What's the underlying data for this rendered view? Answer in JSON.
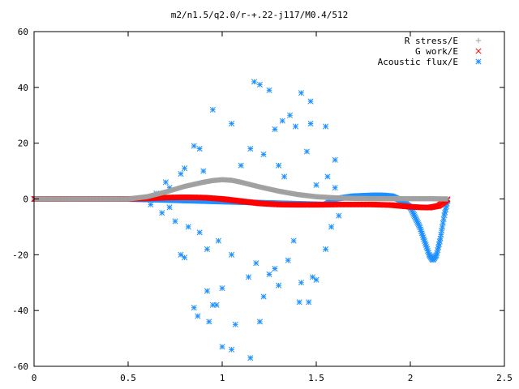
{
  "chart_data": {
    "type": "scatter",
    "title": "m2/n1.5/q2.0/r-+.22-j117/M0.4/512",
    "xlabel": "",
    "ylabel": "",
    "xlim": [
      0,
      2.5
    ],
    "ylim": [
      -60,
      60
    ],
    "xticks": [
      0,
      0.5,
      1,
      1.5,
      2,
      2.5
    ],
    "yticks": [
      -60,
      -40,
      -20,
      0,
      20,
      40,
      60
    ],
    "xtick_labels": [
      "0",
      "0.5",
      "1",
      "1.5",
      "2",
      "2.5"
    ],
    "ytick_labels": [
      "-60",
      "-40",
      "-20",
      "0",
      "20",
      "40",
      "60"
    ],
    "grid": false,
    "legend_position": "top-right",
    "series": [
      {
        "name": "R stress/E",
        "marker": "plus",
        "color": "#a0a0a0",
        "x": [
          0.0,
          0.5,
          0.6,
          0.7,
          0.8,
          0.9,
          0.95,
          1.0,
          1.05,
          1.1,
          1.2,
          1.3,
          1.4,
          1.5,
          1.6,
          1.7,
          1.8,
          1.9,
          2.0,
          2.1,
          2.2
        ],
        "y": [
          0.0,
          0.0,
          0.8,
          2.5,
          4.5,
          6.0,
          6.6,
          6.9,
          6.7,
          6.0,
          4.3,
          2.8,
          1.6,
          0.8,
          0.4,
          0.2,
          0.1,
          0.1,
          0.1,
          0.1,
          0.0
        ]
      },
      {
        "name": "G work/E",
        "marker": "cross",
        "color": "#ff0000",
        "x": [
          0.0,
          0.5,
          0.6,
          0.7,
          0.8,
          0.9,
          1.0,
          1.1,
          1.2,
          1.3,
          1.4,
          1.5,
          1.6,
          1.7,
          1.8,
          1.9,
          2.0,
          2.05,
          2.1,
          2.15,
          2.2
        ],
        "y": [
          0.0,
          0.0,
          0.2,
          0.5,
          0.6,
          0.5,
          0.0,
          -0.8,
          -1.6,
          -2.0,
          -2.1,
          -2.1,
          -2.0,
          -2.0,
          -2.0,
          -2.2,
          -2.8,
          -3.0,
          -3.1,
          -2.5,
          0.0
        ]
      },
      {
        "name": "Acoustic flux/E",
        "marker": "star",
        "color": "#1e90ff",
        "curve_x": [
          0.0,
          0.5,
          1.55,
          1.6,
          1.7,
          1.8,
          1.85,
          1.9,
          1.95,
          2.0,
          2.05,
          2.08,
          2.1,
          2.12,
          2.14,
          2.16,
          2.18,
          2.2
        ],
        "curve_y": [
          0.0,
          0.0,
          -2.0,
          0.0,
          1.0,
          1.3,
          1.3,
          1.0,
          -0.5,
          -3.0,
          -10.0,
          -16.0,
          -20.0,
          -22.0,
          -20.0,
          -14.0,
          -6.0,
          0.0
        ],
        "scatter_points": [
          [
            1.2,
            41
          ],
          [
            1.17,
            42
          ],
          [
            1.25,
            39
          ],
          [
            1.42,
            38
          ],
          [
            1.47,
            35
          ],
          [
            0.95,
            32
          ],
          [
            1.36,
            30
          ],
          [
            1.32,
            28
          ],
          [
            1.05,
            27
          ],
          [
            1.47,
            27
          ],
          [
            1.39,
            26
          ],
          [
            1.55,
            26
          ],
          [
            1.28,
            25
          ],
          [
            0.85,
            19
          ],
          [
            1.15,
            18
          ],
          [
            0.88,
            18
          ],
          [
            1.6,
            14
          ],
          [
            0.8,
            11
          ],
          [
            0.9,
            10
          ],
          [
            1.3,
            12
          ],
          [
            1.22,
            16
          ],
          [
            1.45,
            17
          ],
          [
            0.78,
            9
          ],
          [
            1.56,
            8
          ],
          [
            0.72,
            4
          ],
          [
            1.33,
            8
          ],
          [
            1.1,
            12
          ],
          [
            1.5,
            5
          ],
          [
            0.65,
            2
          ],
          [
            0.62,
            -2
          ],
          [
            0.68,
            -5
          ],
          [
            0.75,
            -8
          ],
          [
            0.82,
            -10
          ],
          [
            0.88,
            -12
          ],
          [
            0.98,
            -15
          ],
          [
            1.05,
            -20
          ],
          [
            0.92,
            -18
          ],
          [
            1.18,
            -23
          ],
          [
            1.28,
            -25
          ],
          [
            1.35,
            -22
          ],
          [
            0.8,
            -21
          ],
          [
            0.78,
            -20
          ],
          [
            1.48,
            -28
          ],
          [
            1.42,
            -30
          ],
          [
            1.0,
            -32
          ],
          [
            1.14,
            -28
          ],
          [
            1.25,
            -27
          ],
          [
            0.92,
            -33
          ],
          [
            0.95,
            -38
          ],
          [
            1.3,
            -31
          ],
          [
            1.22,
            -35
          ],
          [
            1.5,
            -29
          ],
          [
            1.41,
            -37
          ],
          [
            1.46,
            -37
          ],
          [
            0.85,
            -39
          ],
          [
            0.87,
            -42
          ],
          [
            0.97,
            -38
          ],
          [
            0.93,
            -44
          ],
          [
            1.07,
            -45
          ],
          [
            1.2,
            -44
          ],
          [
            1.0,
            -53
          ],
          [
            1.05,
            -54
          ],
          [
            1.15,
            -57
          ],
          [
            1.58,
            -10
          ],
          [
            1.55,
            -18
          ],
          [
            1.38,
            -15
          ],
          [
            0.72,
            -3
          ],
          [
            1.62,
            -6
          ],
          [
            1.6,
            4
          ],
          [
            0.7,
            6
          ]
        ]
      }
    ]
  }
}
